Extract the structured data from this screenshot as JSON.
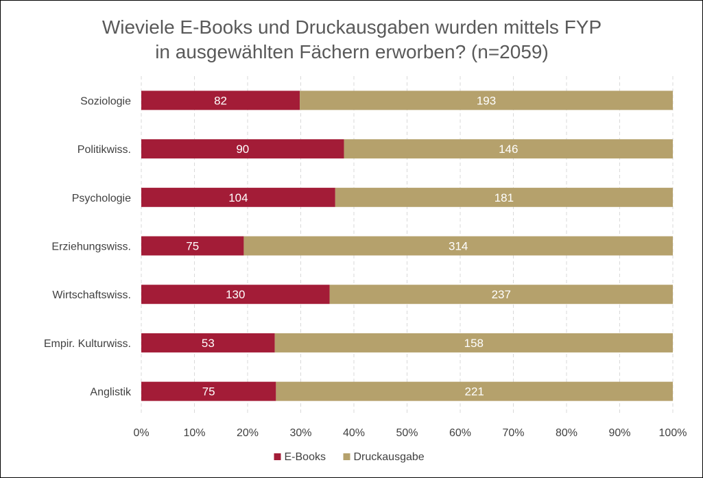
{
  "chart_data": {
    "type": "bar",
    "orientation": "horizontal",
    "stacked": "percent",
    "title_lines": [
      "Wieviele E-Books und Druckausgaben wurden mittels FYP",
      "in ausgewählten Fächern erworben? (n=2059)"
    ],
    "categories": [
      "Soziologie",
      "Politikwiss.",
      "Psychologie",
      "Erziehungswiss.",
      "Wirtschaftswiss.",
      "Empir. Kulturwiss.",
      "Anglistik"
    ],
    "series": [
      {
        "name": "E-Books",
        "color": "#a31c37",
        "values": [
          82,
          90,
          104,
          75,
          130,
          53,
          75
        ]
      },
      {
        "name": "Druckausgabe",
        "color": "#b5a16c",
        "values": [
          193,
          146,
          181,
          314,
          237,
          158,
          221
        ]
      }
    ],
    "x_ticks": [
      "0%",
      "10%",
      "20%",
      "30%",
      "40%",
      "50%",
      "60%",
      "70%",
      "80%",
      "90%",
      "100%"
    ],
    "xlim": [
      0,
      100
    ],
    "grid": true,
    "legend_position": "bottom"
  }
}
